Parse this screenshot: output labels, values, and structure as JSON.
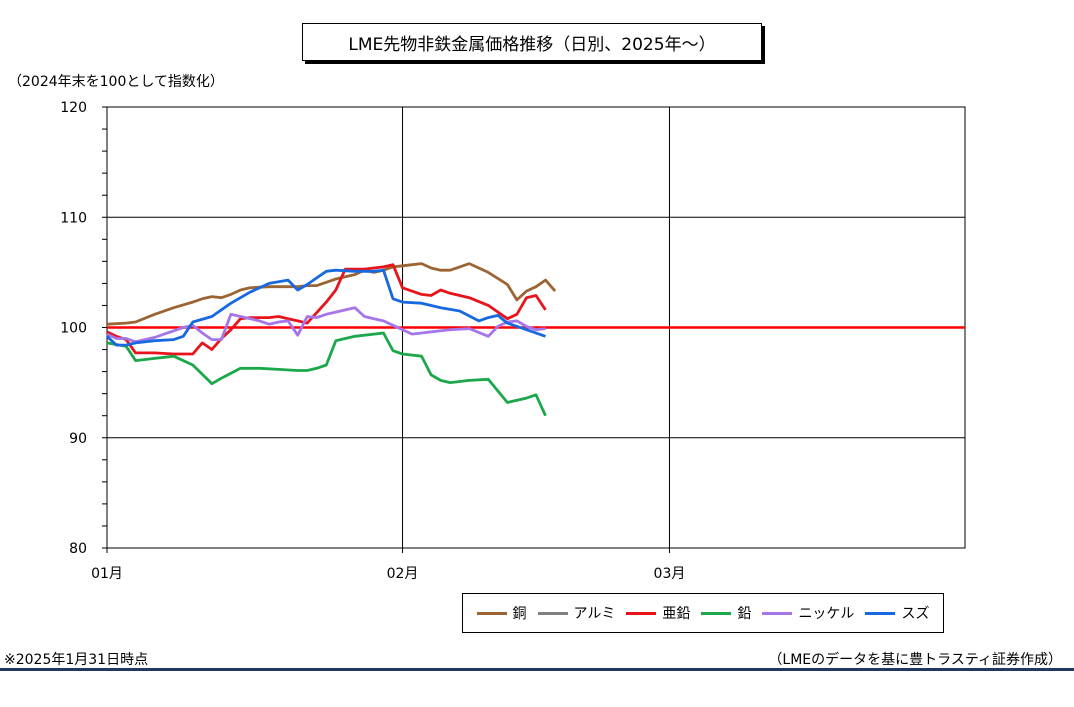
{
  "title": "LME先物非鉄金属価格推移（日別、2025年～）",
  "unit_note": "（2024年末を100として指数化）",
  "footnote": "※2025年1月31日時点",
  "source": "（LMEのデータを基に豊トラスティ証券作成）",
  "chart_data": {
    "type": "line",
    "ylim": [
      80,
      120
    ],
    "yticks": [
      "80",
      "90",
      "100",
      "110",
      "120"
    ],
    "xticks": [
      "01月",
      "02月",
      "03月"
    ],
    "x_range_days": [
      0,
      90
    ],
    "xtick_days": [
      0,
      31,
      59
    ],
    "grid": true,
    "reference_line": {
      "value": 100,
      "color": "#ff0000"
    },
    "legend_position": "bottom-right",
    "series": [
      {
        "name": "銅",
        "color": "#9c6432",
        "data": [
          [
            0,
            100.3
          ],
          [
            2,
            100.4
          ],
          [
            3,
            100.5
          ],
          [
            5,
            101.2
          ],
          [
            7,
            101.8
          ],
          [
            9,
            102.3
          ],
          [
            10,
            102.6
          ],
          [
            11,
            102.8
          ],
          [
            12,
            102.7
          ],
          [
            13,
            103.0
          ],
          [
            14,
            103.4
          ],
          [
            15,
            103.6
          ],
          [
            17,
            103.7
          ],
          [
            18,
            103.7
          ],
          [
            20,
            103.7
          ],
          [
            21,
            103.8
          ],
          [
            22,
            103.8
          ],
          [
            23,
            104.1
          ],
          [
            24,
            104.4
          ],
          [
            25,
            104.6
          ],
          [
            26,
            104.8
          ],
          [
            27,
            105.2
          ],
          [
            28,
            105.0
          ],
          [
            29,
            105.2
          ],
          [
            30,
            105.5
          ],
          [
            31,
            105.6
          ],
          [
            32,
            105.7
          ],
          [
            33,
            105.8
          ],
          [
            34,
            105.4
          ],
          [
            35,
            105.2
          ],
          [
            36,
            105.2
          ],
          [
            37,
            105.5
          ],
          [
            38,
            105.8
          ],
          [
            40,
            105.0
          ],
          [
            42,
            103.9
          ],
          [
            43,
            102.5
          ],
          [
            44,
            103.3
          ],
          [
            45,
            103.7
          ],
          [
            46,
            104.3
          ],
          [
            47,
            103.3
          ]
        ]
      },
      {
        "name": "アルミ",
        "color": "#808080",
        "data": []
      },
      {
        "name": "亜鉛",
        "color": "#e8141c",
        "data": [
          [
            0,
            99.6
          ],
          [
            1,
            99.2
          ],
          [
            2,
            98.9
          ],
          [
            3,
            97.7
          ],
          [
            5,
            97.7
          ],
          [
            7,
            97.6
          ],
          [
            8,
            97.6
          ],
          [
            9,
            97.6
          ],
          [
            10,
            98.6
          ],
          [
            11,
            98.0
          ],
          [
            12,
            99.0
          ],
          [
            13,
            99.8
          ],
          [
            14,
            100.8
          ],
          [
            15,
            100.9
          ],
          [
            17,
            100.9
          ],
          [
            18,
            101.0
          ],
          [
            19,
            100.8
          ],
          [
            20,
            100.6
          ],
          [
            21,
            100.4
          ],
          [
            23,
            102.3
          ],
          [
            24,
            103.4
          ],
          [
            25,
            105.3
          ],
          [
            27,
            105.3
          ],
          [
            29,
            105.5
          ],
          [
            30,
            105.7
          ],
          [
            31,
            103.6
          ],
          [
            33,
            103.0
          ],
          [
            34,
            102.9
          ],
          [
            35,
            103.4
          ],
          [
            36,
            103.1
          ],
          [
            38,
            102.7
          ],
          [
            40,
            102.0
          ],
          [
            42,
            100.8
          ],
          [
            43,
            101.2
          ],
          [
            44,
            102.7
          ],
          [
            45,
            102.9
          ],
          [
            46,
            101.6
          ]
        ]
      },
      {
        "name": "鉛",
        "color": "#1aa84a",
        "data": [
          [
            0,
            98.6
          ],
          [
            2,
            98.3
          ],
          [
            3,
            97.0
          ],
          [
            5,
            97.2
          ],
          [
            6,
            97.3
          ],
          [
            7,
            97.4
          ],
          [
            9,
            96.6
          ],
          [
            11,
            94.9
          ],
          [
            12,
            95.4
          ],
          [
            14,
            96.3
          ],
          [
            16,
            96.3
          ],
          [
            18,
            96.2
          ],
          [
            20,
            96.1
          ],
          [
            21,
            96.1
          ],
          [
            22,
            96.3
          ],
          [
            23,
            96.6
          ],
          [
            24,
            98.8
          ],
          [
            25,
            99.0
          ],
          [
            26,
            99.2
          ],
          [
            28,
            99.4
          ],
          [
            29,
            99.5
          ],
          [
            30,
            97.9
          ],
          [
            31,
            97.6
          ],
          [
            33,
            97.4
          ],
          [
            34,
            95.7
          ],
          [
            35,
            95.2
          ],
          [
            36,
            95.0
          ],
          [
            38,
            95.2
          ],
          [
            40,
            95.3
          ],
          [
            42,
            93.2
          ],
          [
            43,
            93.4
          ],
          [
            44,
            93.6
          ],
          [
            45,
            93.9
          ],
          [
            46,
            92.0
          ]
        ]
      },
      {
        "name": "ニッケル",
        "color": "#a675e8",
        "data": [
          [
            0,
            99.4
          ],
          [
            1,
            99.0
          ],
          [
            2,
            99.0
          ],
          [
            3,
            98.7
          ],
          [
            5,
            99.1
          ],
          [
            6,
            99.4
          ],
          [
            7,
            99.7
          ],
          [
            8,
            100.0
          ],
          [
            9,
            100.2
          ],
          [
            10,
            99.5
          ],
          [
            11,
            98.9
          ],
          [
            12,
            98.9
          ],
          [
            13,
            101.2
          ],
          [
            14,
            101.0
          ],
          [
            16,
            100.6
          ],
          [
            17,
            100.3
          ],
          [
            18,
            100.5
          ],
          [
            19,
            100.6
          ],
          [
            20,
            99.3
          ],
          [
            21,
            101.0
          ],
          [
            22,
            100.9
          ],
          [
            23,
            101.2
          ],
          [
            24,
            101.4
          ],
          [
            25,
            101.6
          ],
          [
            26,
            101.8
          ],
          [
            27,
            101.0
          ],
          [
            28,
            100.8
          ],
          [
            29,
            100.6
          ],
          [
            31,
            99.8
          ],
          [
            32,
            99.4
          ],
          [
            34,
            99.6
          ],
          [
            36,
            99.8
          ],
          [
            38,
            99.9
          ],
          [
            40,
            99.2
          ],
          [
            41,
            100.1
          ],
          [
            42,
            100.5
          ],
          [
            43,
            100.6
          ],
          [
            44,
            100.1
          ],
          [
            45,
            99.8
          ],
          [
            46,
            99.9
          ]
        ]
      },
      {
        "name": "スズ",
        "color": "#1868e0",
        "data": [
          [
            0,
            99.2
          ],
          [
            1,
            98.4
          ],
          [
            2,
            98.4
          ],
          [
            3,
            98.6
          ],
          [
            5,
            98.8
          ],
          [
            7,
            98.9
          ],
          [
            8,
            99.2
          ],
          [
            9,
            100.5
          ],
          [
            11,
            101.0
          ],
          [
            13,
            102.2
          ],
          [
            15,
            103.2
          ],
          [
            17,
            104.0
          ],
          [
            19,
            104.3
          ],
          [
            20,
            103.4
          ],
          [
            21,
            103.9
          ],
          [
            22,
            104.5
          ],
          [
            23,
            105.1
          ],
          [
            24,
            105.2
          ],
          [
            26,
            105.1
          ],
          [
            28,
            105.1
          ],
          [
            29,
            105.2
          ],
          [
            30,
            102.6
          ],
          [
            31,
            102.3
          ],
          [
            33,
            102.2
          ],
          [
            35,
            101.8
          ],
          [
            37,
            101.5
          ],
          [
            39,
            100.6
          ],
          [
            40,
            100.9
          ],
          [
            41,
            101.1
          ],
          [
            42,
            100.4
          ],
          [
            44,
            99.8
          ],
          [
            46,
            99.2
          ]
        ]
      }
    ]
  }
}
